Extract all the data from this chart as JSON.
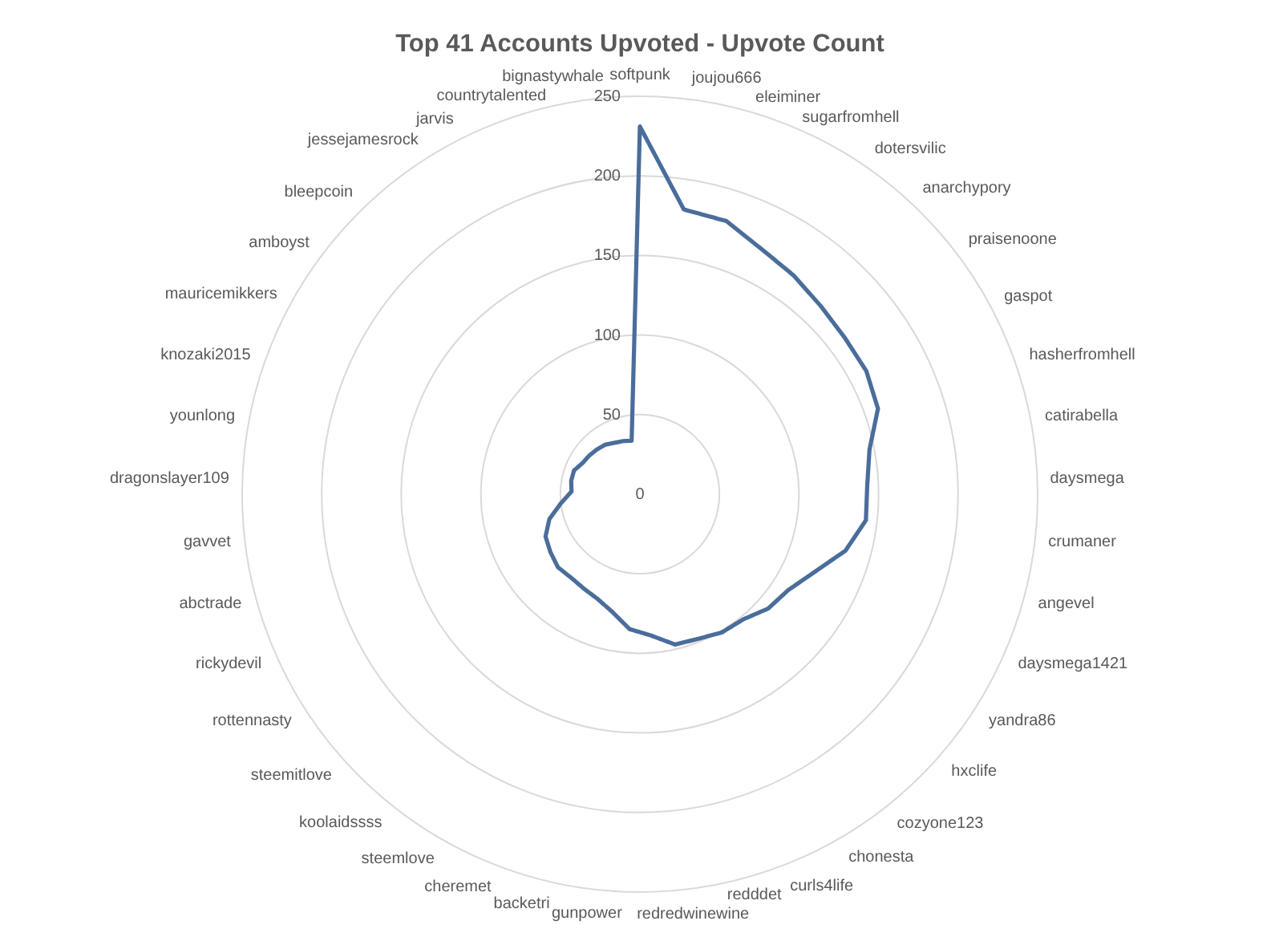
{
  "chart_data": {
    "type": "radar",
    "title": "Top 41 Accounts Upvoted - Upvote Count",
    "categories": [
      "softpunk",
      "joujou666",
      "eleiminer",
      "sugarfromhell",
      "dotersvilic",
      "anarchypory",
      "praisenoone",
      "gaspot",
      "hasherfromhell",
      "catirabella",
      "daysmega",
      "crumaner",
      "angevel",
      "daysmega1421",
      "yandra86",
      "hxclife",
      "cozyone123",
      "chonesta",
      "curls4life",
      "redddet",
      "redredwinewine",
      "gunpower",
      "backetri",
      "cheremet",
      "steemlove",
      "koolaidssss",
      "steemitlove",
      "rottennasty",
      "rickydevil",
      "abctrade",
      "gavvet",
      "dragonslayer109",
      "younlong",
      "knozaki2015",
      "mauricemikkers",
      "amboyst",
      "bleepcoin",
      "jessejamesrock",
      "jarvis",
      "countrytalented",
      "bignastywhale"
    ],
    "series": [
      {
        "color": "#4a6d9b",
        "values": [
          231,
          181,
          180,
          172,
          168,
          164,
          162,
          162,
          159,
          147,
          143,
          143,
          134,
          120,
          111,
          108,
          102,
          101,
          98,
          97,
          89,
          85,
          76,
          71,
          69,
          68,
          69,
          67,
          65,
          59,
          50,
          43,
          44,
          44,
          41,
          40,
          39,
          38,
          36,
          35,
          34
        ]
      }
    ],
    "ylim": [
      0,
      250
    ],
    "yticks": [
      0,
      50,
      100,
      150,
      200,
      250
    ],
    "grid": true,
    "line_style": "solid"
  }
}
